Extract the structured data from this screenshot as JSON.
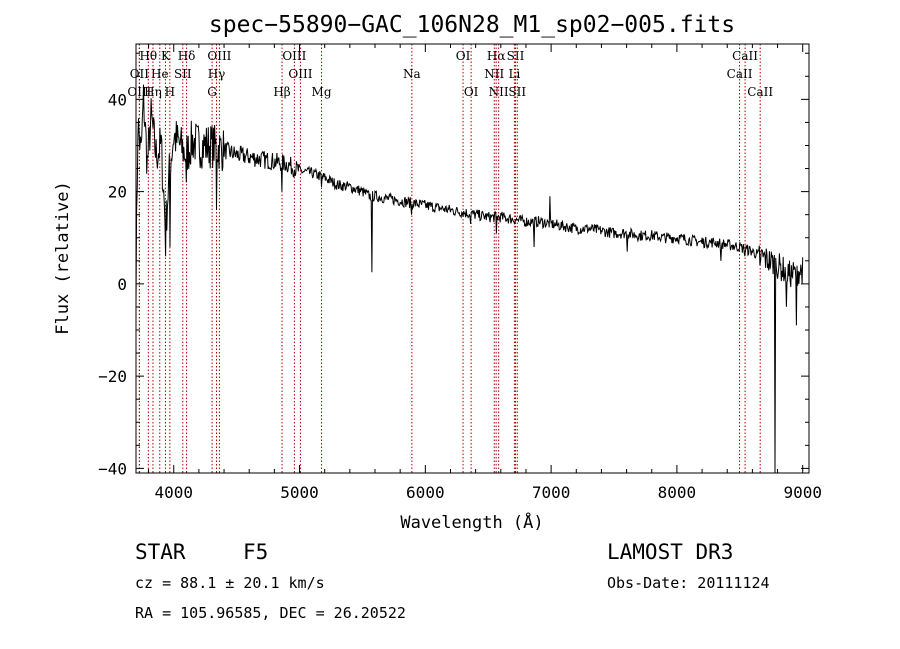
{
  "chart_data": {
    "type": "line",
    "title": "spec−55890−GAC_106N28_M1_sp02−005.fits",
    "xlabel": "Wavelength (Å)",
    "ylabel": "Flux (relative)",
    "xlim": [
      3700,
      9050
    ],
    "ylim": [
      -41,
      52
    ],
    "xticks": [
      {
        "value": 4000,
        "label": "4000"
      },
      {
        "value": 5000,
        "label": "5000"
      },
      {
        "value": 6000,
        "label": "6000"
      },
      {
        "value": 7000,
        "label": "7000"
      },
      {
        "value": 8000,
        "label": "8000"
      },
      {
        "value": 9000,
        "label": "9000"
      }
    ],
    "yticks": [
      {
        "value": -40,
        "label": "−40"
      },
      {
        "value": -20,
        "label": "−20"
      },
      {
        "value": 0,
        "label": "0"
      },
      {
        "value": 20,
        "label": "20"
      },
      {
        "value": 40,
        "label": "40"
      }
    ],
    "continuum": [
      [
        3700,
        0
      ],
      [
        3715,
        35
      ],
      [
        3740,
        28
      ],
      [
        3760,
        40
      ],
      [
        3790,
        26
      ],
      [
        3820,
        36
      ],
      [
        3860,
        28
      ],
      [
        3900,
        30
      ],
      [
        3935,
        12
      ],
      [
        3970,
        26
      ],
      [
        4000,
        32
      ],
      [
        4050,
        30
      ],
      [
        4100,
        28
      ],
      [
        4150,
        31
      ],
      [
        4200,
        30
      ],
      [
        4300,
        30
      ],
      [
        4400,
        29
      ],
      [
        4500,
        28
      ],
      [
        4600,
        27.5
      ],
      [
        4700,
        27
      ],
      [
        4800,
        26.5
      ],
      [
        4900,
        26
      ],
      [
        5000,
        24.5
      ],
      [
        5100,
        24
      ],
      [
        5200,
        23
      ],
      [
        5300,
        21.5
      ],
      [
        5400,
        21
      ],
      [
        5500,
        20
      ],
      [
        5560,
        19
      ],
      [
        5600,
        19
      ],
      [
        5700,
        18.5
      ],
      [
        5800,
        18
      ],
      [
        5900,
        17.5
      ],
      [
        6000,
        17
      ],
      [
        6100,
        16.5
      ],
      [
        6200,
        16
      ],
      [
        6300,
        15.5
      ],
      [
        6400,
        15
      ],
      [
        6500,
        14.5
      ],
      [
        6600,
        14.5
      ],
      [
        6700,
        14
      ],
      [
        6800,
        13.5
      ],
      [
        6900,
        13.5
      ],
      [
        7000,
        13
      ],
      [
        7100,
        12.5
      ],
      [
        7200,
        12
      ],
      [
        7300,
        12
      ],
      [
        7400,
        11.5
      ],
      [
        7500,
        11
      ],
      [
        7600,
        11
      ],
      [
        7700,
        10.5
      ],
      [
        7800,
        10.5
      ],
      [
        7900,
        10
      ],
      [
        8000,
        10
      ],
      [
        8100,
        9.5
      ],
      [
        8200,
        9
      ],
      [
        8300,
        9
      ],
      [
        8400,
        8.5
      ],
      [
        8500,
        8
      ],
      [
        8600,
        7
      ],
      [
        8700,
        5.5
      ],
      [
        8800,
        4
      ],
      [
        8900,
        2
      ],
      [
        9000,
        3
      ]
    ],
    "features": [
      [
        3935,
        6
      ],
      [
        3970,
        8
      ],
      [
        4101,
        22
      ],
      [
        4340,
        16
      ],
      [
        4861,
        20
      ],
      [
        5175,
        21
      ],
      [
        5577,
        2.5
      ],
      [
        5890,
        15
      ],
      [
        6360,
        13
      ],
      [
        6563,
        11
      ],
      [
        6867,
        8
      ],
      [
        6990,
        19
      ],
      [
        7605,
        7
      ],
      [
        8200,
        10
      ],
      [
        8350,
        5
      ],
      [
        8541,
        6
      ],
      [
        8662,
        4
      ],
      [
        8780,
        -42
      ],
      [
        8870,
        -5
      ],
      [
        8950,
        -9
      ]
    ],
    "line_markers": [
      {
        "label": "Hθ",
        "x": 3798,
        "row": 1
      },
      {
        "label": "OII",
        "x": 3727,
        "row": 2
      },
      {
        "label": "OIII",
        "x": 3727,
        "row": 3
      },
      {
        "label": "He",
        "x": 3889,
        "row": 2
      },
      {
        "label": "Hη",
        "x": 3835,
        "row": 3
      },
      {
        "label": "K",
        "x": 3934,
        "row": 1
      },
      {
        "label": "SII",
        "x": 4072,
        "row": 2
      },
      {
        "label": "H",
        "x": 3969,
        "row": 3
      },
      {
        "label": "Hδ",
        "x": 4102,
        "row": 1
      },
      {
        "label": "OIII",
        "x": 4363,
        "row": 1
      },
      {
        "label": "Hγ",
        "x": 4340,
        "row": 2
      },
      {
        "label": "G",
        "x": 4305,
        "row": 3
      },
      {
        "label": "OIII",
        "x": 4959,
        "row": 1
      },
      {
        "label": "OIII",
        "x": 5007,
        "row": 2
      },
      {
        "label": "Hβ",
        "x": 4861,
        "row": 3
      },
      {
        "label": "Mg",
        "x": 5175,
        "row": 3
      },
      {
        "label": "Na",
        "x": 5893,
        "row": 2
      },
      {
        "label": "OI",
        "x": 6300,
        "row": 1
      },
      {
        "label": "OI",
        "x": 6364,
        "row": 3
      },
      {
        "label": "Hα",
        "x": 6563,
        "row": 1
      },
      {
        "label": "SII",
        "x": 6717,
        "row": 1
      },
      {
        "label": "NII",
        "x": 6548,
        "row": 2
      },
      {
        "label": "Li",
        "x": 6708,
        "row": 2
      },
      {
        "label": "NII",
        "x": 6583,
        "row": 3
      },
      {
        "label": "SII",
        "x": 6731,
        "row": 3
      },
      {
        "label": "CaII",
        "x": 8542,
        "row": 1
      },
      {
        "label": "CaII",
        "x": 8498,
        "row": 2
      },
      {
        "label": "CaII",
        "x": 8662,
        "row": 3
      }
    ]
  },
  "info": {
    "object_class": "STAR",
    "subclass": "F5",
    "survey": "LAMOST DR3",
    "redshift": "cz = 88.1 ± 20.1 km/s",
    "obs_date": "Obs-Date: 20111124",
    "coordinates": "RA = 105.96585, DEC =  26.20522"
  }
}
